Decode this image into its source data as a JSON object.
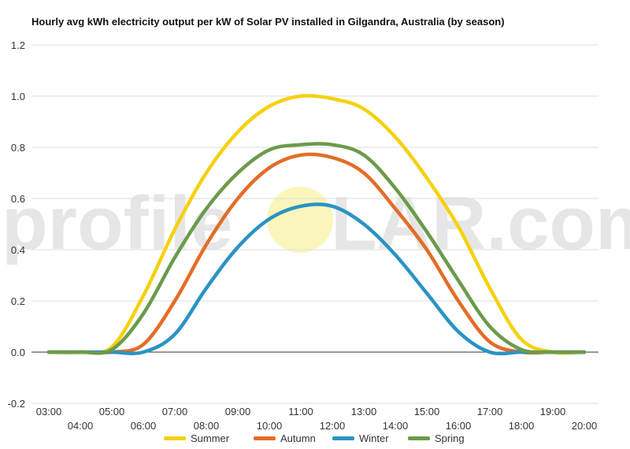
{
  "chart_data": {
    "type": "line",
    "title": "Hourly avg kWh electricity output per kW of Solar PV installed in Gilgandra, Australia (by season)",
    "xlabel": "",
    "ylabel": "",
    "x": [
      "03:00",
      "04:00",
      "05:00",
      "06:00",
      "07:00",
      "08:00",
      "09:00",
      "10:00",
      "11:00",
      "12:00",
      "13:00",
      "14:00",
      "15:00",
      "16:00",
      "17:00",
      "18:00",
      "19:00",
      "20:00"
    ],
    "ylim": [
      -0.2,
      1.2
    ],
    "yticks": [
      "-0.2",
      "0.0",
      "0.2",
      "0.4",
      "0.6",
      "0.8",
      "1.0",
      "1.2"
    ],
    "grid": true,
    "legend_position": "bottom",
    "series": [
      {
        "name": "Summer",
        "color": "#f5d10f",
        "values": [
          0.0,
          0.0,
          0.02,
          0.22,
          0.48,
          0.7,
          0.86,
          0.96,
          1.0,
          0.99,
          0.95,
          0.84,
          0.68,
          0.49,
          0.25,
          0.05,
          0.0,
          0.0
        ]
      },
      {
        "name": "Autumn",
        "color": "#e46d27",
        "values": [
          0.0,
          0.0,
          0.0,
          0.03,
          0.2,
          0.42,
          0.6,
          0.72,
          0.77,
          0.76,
          0.7,
          0.56,
          0.4,
          0.2,
          0.04,
          0.0,
          0.0,
          0.0
        ]
      },
      {
        "name": "Winter",
        "color": "#2a93c4",
        "values": [
          0.0,
          0.0,
          0.0,
          0.0,
          0.07,
          0.25,
          0.41,
          0.52,
          0.57,
          0.57,
          0.5,
          0.38,
          0.23,
          0.08,
          0.0,
          0.0,
          0.0,
          0.0
        ]
      },
      {
        "name": "Spring",
        "color": "#6b9b4a",
        "values": [
          0.0,
          0.0,
          0.01,
          0.15,
          0.37,
          0.56,
          0.7,
          0.79,
          0.81,
          0.81,
          0.77,
          0.64,
          0.47,
          0.28,
          0.1,
          0.01,
          0.0,
          0.0
        ]
      }
    ]
  },
  "watermark": {
    "left": "profile",
    "right": "LAR.com",
    "sun_color": "#f8f3a6"
  }
}
